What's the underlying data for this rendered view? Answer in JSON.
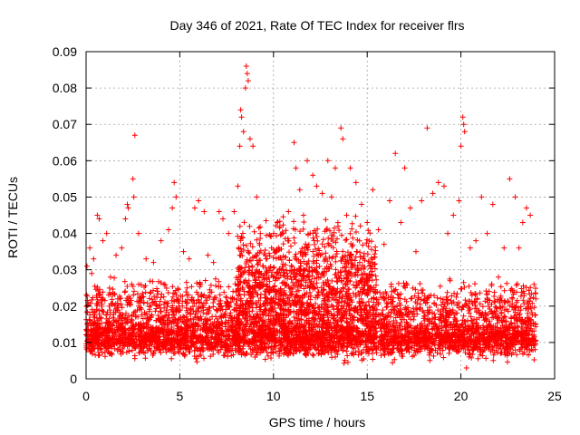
{
  "chart_data": {
    "type": "scatter",
    "title": "Day 346 of 2021, Rate Of TEC Index for receiver flrs",
    "xlabel": "GPS time / hours",
    "ylabel": "ROTI / TECUs",
    "xlim": [
      0,
      25
    ],
    "ylim": [
      0,
      0.09
    ],
    "xticks": [
      0,
      5,
      10,
      15,
      20,
      25
    ],
    "xtick_labels": [
      "0",
      "5",
      "10",
      "15",
      "20",
      "25"
    ],
    "yticks": [
      0,
      0.01,
      0.02,
      0.03,
      0.04,
      0.05,
      0.06,
      0.07,
      0.08,
      0.09
    ],
    "ytick_labels": [
      "0",
      "0.01",
      "0.02",
      "0.03",
      "0.04",
      "0.05",
      "0.06",
      "0.07",
      "0.08",
      "0.09"
    ],
    "grid": true,
    "marker": "+",
    "color": "#ff0000",
    "series": [
      {
        "name": "ROTI",
        "points": [
          [
            0.05,
            0.031
          ],
          [
            0.1,
            0.021
          ],
          [
            0.2,
            0.036
          ],
          [
            0.3,
            0.029
          ],
          [
            0.4,
            0.033
          ],
          [
            0.6,
            0.045
          ],
          [
            0.7,
            0.044
          ],
          [
            0.9,
            0.038
          ],
          [
            1.1,
            0.04
          ],
          [
            1.3,
            0.028
          ],
          [
            1.6,
            0.034
          ],
          [
            1.9,
            0.036
          ],
          [
            2.1,
            0.044
          ],
          [
            2.2,
            0.048
          ],
          [
            2.25,
            0.047
          ],
          [
            2.5,
            0.055
          ],
          [
            2.55,
            0.05
          ],
          [
            2.6,
            0.067
          ],
          [
            2.8,
            0.04
          ],
          [
            3.2,
            0.033
          ],
          [
            3.6,
            0.032
          ],
          [
            4.0,
            0.038
          ],
          [
            4.4,
            0.041
          ],
          [
            4.6,
            0.047
          ],
          [
            4.7,
            0.054
          ],
          [
            4.8,
            0.05
          ],
          [
            5.2,
            0.035
          ],
          [
            5.5,
            0.033
          ],
          [
            5.8,
            0.047
          ],
          [
            6.0,
            0.049
          ],
          [
            6.3,
            0.046
          ],
          [
            6.5,
            0.034
          ],
          [
            6.8,
            0.032
          ],
          [
            7.1,
            0.046
          ],
          [
            7.3,
            0.044
          ],
          [
            7.6,
            0.04
          ],
          [
            7.9,
            0.046
          ],
          [
            8.1,
            0.053
          ],
          [
            8.2,
            0.064
          ],
          [
            8.25,
            0.074
          ],
          [
            8.3,
            0.072
          ],
          [
            8.4,
            0.068
          ],
          [
            8.5,
            0.08
          ],
          [
            8.55,
            0.086
          ],
          [
            8.6,
            0.084
          ],
          [
            8.65,
            0.082
          ],
          [
            8.75,
            0.066
          ],
          [
            8.9,
            0.064
          ],
          [
            9.1,
            0.05
          ],
          [
            9.3,
            0.04
          ],
          [
            9.6,
            0.033
          ],
          [
            9.9,
            0.036
          ],
          [
            10.2,
            0.043
          ],
          [
            10.5,
            0.04
          ],
          [
            10.8,
            0.046
          ],
          [
            11.1,
            0.065
          ],
          [
            11.2,
            0.058
          ],
          [
            11.4,
            0.052
          ],
          [
            11.6,
            0.045
          ],
          [
            11.8,
            0.06
          ],
          [
            12.1,
            0.056
          ],
          [
            12.3,
            0.053
          ],
          [
            12.6,
            0.051
          ],
          [
            12.9,
            0.06
          ],
          [
            13.1,
            0.05
          ],
          [
            13.3,
            0.058
          ],
          [
            13.6,
            0.069
          ],
          [
            13.7,
            0.066
          ],
          [
            13.9,
            0.045
          ],
          [
            14.1,
            0.058
          ],
          [
            14.4,
            0.054
          ],
          [
            14.7,
            0.048
          ],
          [
            15.0,
            0.043
          ],
          [
            15.3,
            0.052
          ],
          [
            15.6,
            0.041
          ],
          [
            15.9,
            0.037
          ],
          [
            16.2,
            0.049
          ],
          [
            16.5,
            0.062
          ],
          [
            16.8,
            0.043
          ],
          [
            17.0,
            0.058
          ],
          [
            17.3,
            0.047
          ],
          [
            17.6,
            0.035
          ],
          [
            17.9,
            0.049
          ],
          [
            18.2,
            0.069
          ],
          [
            18.5,
            0.051
          ],
          [
            18.8,
            0.054
          ],
          [
            19.1,
            0.053
          ],
          [
            19.3,
            0.04
          ],
          [
            19.6,
            0.045
          ],
          [
            19.9,
            0.049
          ],
          [
            20.0,
            0.064
          ],
          [
            20.1,
            0.072
          ],
          [
            20.15,
            0.07
          ],
          [
            20.2,
            0.068
          ],
          [
            20.3,
            0.003
          ],
          [
            20.5,
            0.036
          ],
          [
            20.8,
            0.038
          ],
          [
            21.1,
            0.05
          ],
          [
            21.4,
            0.04
          ],
          [
            21.7,
            0.048
          ],
          [
            22.0,
            0.028
          ],
          [
            22.3,
            0.036
          ],
          [
            22.6,
            0.055
          ],
          [
            22.9,
            0.05
          ],
          [
            23.1,
            0.036
          ],
          [
            23.3,
            0.043
          ],
          [
            23.5,
            0.047
          ],
          [
            23.7,
            0.045
          ],
          [
            23.9,
            0.026
          ],
          [
            24.0,
            0.022
          ]
        ]
      }
    ],
    "density_bands": [
      {
        "x_from": 0.0,
        "x_to": 24.0,
        "y_low": 0.004,
        "y_high": 0.028,
        "count": 2600
      },
      {
        "x_from": 0.0,
        "x_to": 24.0,
        "y_low": 0.006,
        "y_high": 0.016,
        "count": 2200
      },
      {
        "x_from": 8.0,
        "x_to": 15.5,
        "y_low": 0.012,
        "y_high": 0.045,
        "count": 900
      }
    ]
  }
}
